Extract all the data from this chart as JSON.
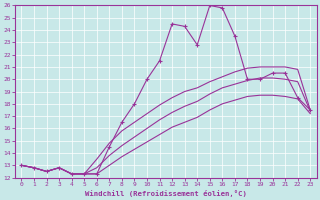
{
  "xlabel": "Windchill (Refroidissement éolien,°C)",
  "xlim": [
    -0.5,
    23.5
  ],
  "ylim": [
    12,
    26
  ],
  "xticks": [
    0,
    1,
    2,
    3,
    4,
    5,
    6,
    7,
    8,
    9,
    10,
    11,
    12,
    13,
    14,
    15,
    16,
    17,
    18,
    19,
    20,
    21,
    22,
    23
  ],
  "yticks": [
    12,
    13,
    14,
    15,
    16,
    17,
    18,
    19,
    20,
    21,
    22,
    23,
    24,
    25,
    26
  ],
  "bg_color": "#c8e8e8",
  "line_color": "#993399",
  "lines": [
    {
      "x": [
        0,
        1,
        2,
        3,
        4,
        5,
        6,
        7,
        8,
        9,
        10,
        11,
        12,
        13,
        14,
        15,
        16,
        17,
        18,
        19,
        20,
        21,
        22,
        23
      ],
      "y": [
        13.0,
        12.8,
        12.5,
        12.8,
        12.3,
        12.3,
        12.3,
        14.5,
        16.5,
        18.0,
        20.0,
        21.5,
        24.5,
        24.3,
        22.8,
        26.0,
        25.8,
        23.5,
        20.0,
        20.0,
        20.5,
        20.5,
        18.5,
        17.5
      ],
      "marker": true
    },
    {
      "x": [
        0,
        1,
        2,
        3,
        4,
        5,
        6,
        7,
        8,
        9,
        10,
        11,
        12,
        13,
        14,
        15,
        16,
        17,
        18,
        19,
        20,
        21,
        22,
        23
      ],
      "y": [
        13.0,
        12.8,
        12.5,
        12.8,
        12.3,
        12.3,
        13.5,
        14.8,
        15.8,
        16.5,
        17.2,
        17.9,
        18.5,
        19.0,
        19.3,
        19.8,
        20.2,
        20.6,
        20.9,
        21.0,
        21.0,
        21.0,
        20.8,
        17.5
      ],
      "marker": false
    },
    {
      "x": [
        0,
        1,
        2,
        3,
        4,
        5,
        6,
        7,
        8,
        9,
        10,
        11,
        12,
        13,
        14,
        15,
        16,
        17,
        18,
        19,
        20,
        21,
        22,
        23
      ],
      "y": [
        13.0,
        12.8,
        12.5,
        12.8,
        12.3,
        12.3,
        12.8,
        13.8,
        14.6,
        15.3,
        16.0,
        16.7,
        17.3,
        17.8,
        18.2,
        18.8,
        19.3,
        19.6,
        19.9,
        20.1,
        20.1,
        20.0,
        19.8,
        17.4
      ],
      "marker": false
    },
    {
      "x": [
        0,
        1,
        2,
        3,
        4,
        5,
        6,
        7,
        8,
        9,
        10,
        11,
        12,
        13,
        14,
        15,
        16,
        17,
        18,
        19,
        20,
        21,
        22,
        23
      ],
      "y": [
        13.0,
        12.8,
        12.5,
        12.8,
        12.3,
        12.3,
        12.3,
        13.0,
        13.7,
        14.3,
        14.9,
        15.5,
        16.1,
        16.5,
        16.9,
        17.5,
        18.0,
        18.3,
        18.6,
        18.7,
        18.7,
        18.6,
        18.4,
        17.2
      ],
      "marker": false
    }
  ]
}
